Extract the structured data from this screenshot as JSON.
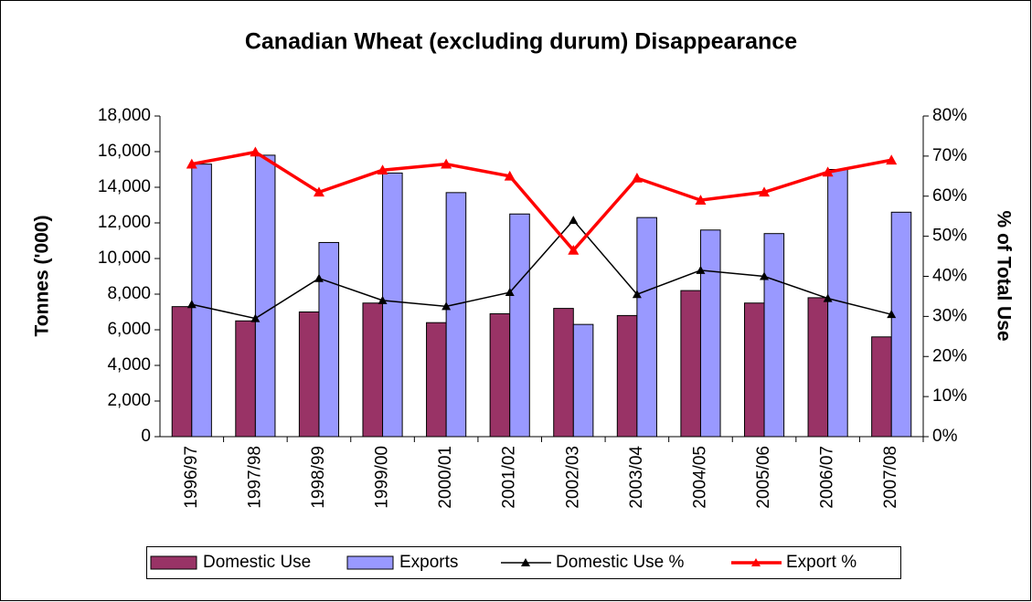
{
  "chart_data": {
    "type": "bar",
    "title": "Canadian Wheat (excluding durum) Disappearance",
    "ylabel": "Tonnes ('000)",
    "y2label": "% of Total Use",
    "categories": [
      "1996/97",
      "1997/98",
      "1998/99",
      "1999/00",
      "2000/01",
      "2001/02",
      "2002/03",
      "2003/04",
      "2004/05",
      "2005/06",
      "2006/07",
      "2007/08"
    ],
    "series": [
      {
        "name": "Domestic Use",
        "type": "bar",
        "color": "#993366",
        "values": [
          7300,
          6500,
          7000,
          7500,
          6400,
          6900,
          7200,
          6800,
          8200,
          7500,
          7800,
          5600
        ]
      },
      {
        "name": "Exports",
        "type": "bar",
        "color": "#9999ff",
        "values": [
          15300,
          15800,
          10900,
          14800,
          13700,
          12500,
          6300,
          12300,
          11600,
          11400,
          15000,
          12600
        ]
      },
      {
        "name": "Domestic Use %",
        "type": "line",
        "axis": "y2",
        "color": "#000000",
        "values": [
          33,
          29.5,
          39.5,
          34,
          32.5,
          36,
          54,
          35.5,
          41.5,
          40,
          34.5,
          30.5
        ]
      },
      {
        "name": "Export %",
        "type": "line",
        "axis": "y2",
        "color": "#ff0000",
        "values": [
          68,
          71,
          61,
          66.5,
          68,
          65,
          46.5,
          64.5,
          59,
          61,
          66,
          69
        ]
      }
    ],
    "ylim": [
      0,
      18000
    ],
    "yticks": [
      0,
      {
        "value": 2000,
        "label": "2,000"
      },
      {
        "value": 4000,
        "label": "4,000"
      },
      {
        "value": 6000,
        "label": "6,000"
      },
      {
        "value": 8000,
        "label": "8,000"
      },
      {
        "value": 10000,
        "label": "10,000"
      },
      {
        "value": 12000,
        "label": "12,000"
      },
      {
        "value": 14000,
        "label": "14,000"
      },
      {
        "value": 16000,
        "label": "16,000"
      },
      {
        "value": 18000,
        "label": "18,000"
      }
    ],
    "y2lim": [
      0,
      80
    ],
    "y2ticks": [
      {
        "value": 0,
        "label": "0%"
      },
      {
        "value": 10,
        "label": "10%"
      },
      {
        "value": 20,
        "label": "20%"
      },
      {
        "value": 30,
        "label": "30%"
      },
      {
        "value": 40,
        "label": "40%"
      },
      {
        "value": 50,
        "label": "50%"
      },
      {
        "value": 60,
        "label": "60%"
      },
      {
        "value": 70,
        "label": "70%"
      },
      {
        "value": 80,
        "label": "80%"
      }
    ],
    "legend": "bottom"
  }
}
